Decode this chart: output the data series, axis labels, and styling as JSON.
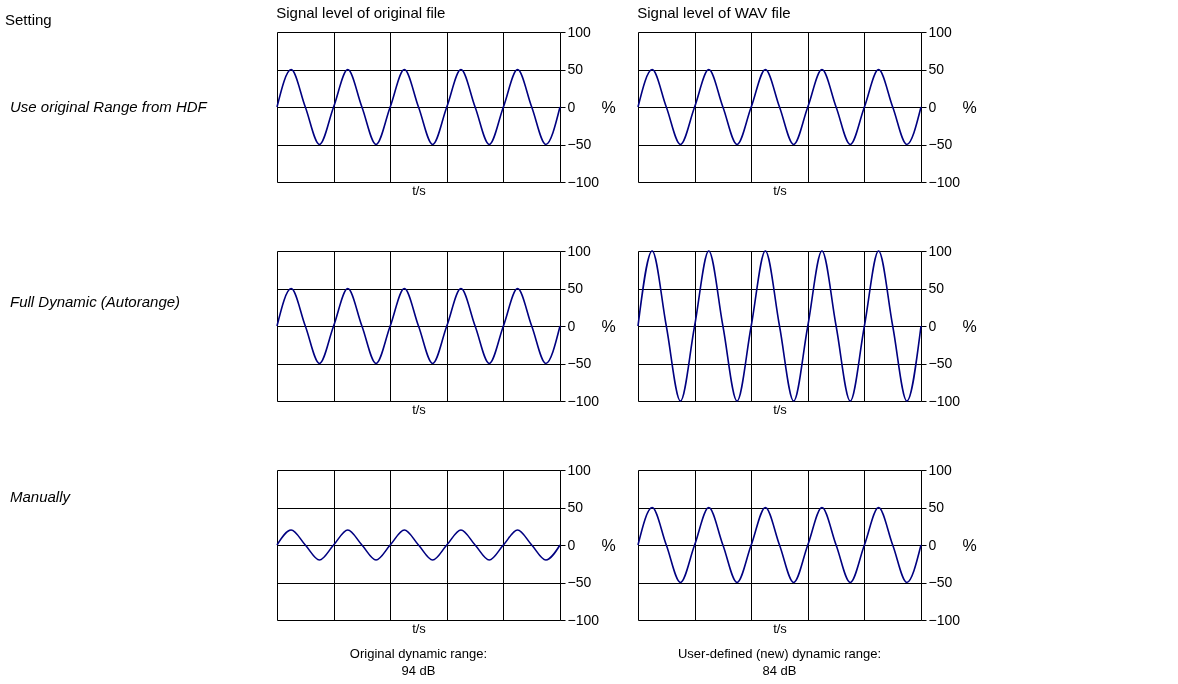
{
  "chart_data": [
    {
      "type": "other",
      "title": "Setting",
      "annotations": [
        "Use original Range from HDF",
        "Full Dynamic (Autorange)",
        "Manually"
      ]
    },
    {
      "type": "line",
      "title": "Signal level of original file",
      "xlabel": "t/s",
      "ylabel": "%",
      "categories": [
        null,
        null,
        null,
        null,
        null,
        null,
        null,
        null,
        null,
        null,
        null,
        null,
        null,
        null,
        null,
        null,
        null,
        null,
        null,
        null,
        null
      ],
      "series": [
        {
          "color": "#000080",
          "values": [
            0,
            50,
            0,
            -50,
            0,
            50,
            0,
            -50,
            0,
            50,
            0,
            -50,
            0,
            50,
            0,
            -50,
            0,
            50,
            0,
            -50,
            0
          ]
        }
      ],
      "ylim": [
        -100,
        100
      ],
      "yticks": [
        -100,
        -50,
        0,
        50,
        100
      ],
      "grid": true
    },
    {
      "type": "line",
      "title": "Signal level of WAV file",
      "xlabel": "t/s",
      "ylabel": "%",
      "categories": [
        null,
        null,
        null,
        null,
        null,
        null,
        null,
        null,
        null,
        null,
        null,
        null,
        null,
        null,
        null,
        null,
        null,
        null,
        null,
        null,
        null
      ],
      "series": [
        {
          "color": "#000080",
          "values": [
            0,
            50,
            0,
            -50,
            0,
            50,
            0,
            -50,
            0,
            50,
            0,
            -50,
            0,
            50,
            0,
            -50,
            0,
            50,
            0,
            -50,
            0
          ]
        }
      ],
      "ylim": [
        -100,
        100
      ],
      "yticks": [
        -100,
        -50,
        0,
        50,
        100
      ],
      "grid": true
    },
    {
      "type": "line",
      "xlabel": "t/s",
      "ylabel": "%",
      "categories": [
        null,
        null,
        null,
        null,
        null,
        null,
        null,
        null,
        null,
        null,
        null,
        null,
        null,
        null,
        null,
        null,
        null,
        null,
        null,
        null,
        null
      ],
      "series": [
        {
          "color": "#000080",
          "values": [
            0,
            50,
            0,
            -50,
            0,
            50,
            0,
            -50,
            0,
            50,
            0,
            -50,
            0,
            50,
            0,
            -50,
            0,
            50,
            0,
            -50,
            0
          ]
        }
      ],
      "ylim": [
        -100,
        100
      ],
      "yticks": [
        -100,
        -50,
        0,
        50,
        100
      ],
      "grid": true
    },
    {
      "type": "line",
      "xlabel": "t/s",
      "ylabel": "%",
      "categories": [
        null,
        null,
        null,
        null,
        null,
        null,
        null,
        null,
        null,
        null,
        null,
        null,
        null,
        null,
        null,
        null,
        null,
        null,
        null,
        null,
        null
      ],
      "series": [
        {
          "color": "#000080",
          "values": [
            0,
            100,
            0,
            -100,
            0,
            100,
            0,
            -100,
            0,
            100,
            0,
            -100,
            0,
            100,
            0,
            -100,
            0,
            100,
            0,
            -100,
            0
          ]
        }
      ],
      "ylim": [
        -100,
        100
      ],
      "yticks": [
        -100,
        -50,
        0,
        50,
        100
      ],
      "grid": true
    },
    {
      "type": "line",
      "xlabel": "t/s",
      "ylabel": "%",
      "categories": [
        null,
        null,
        null,
        null,
        null,
        null,
        null,
        null,
        null,
        null,
        null,
        null,
        null,
        null,
        null,
        null,
        null,
        null,
        null,
        null,
        null
      ],
      "series": [
        {
          "color": "#000080",
          "values": [
            0,
            20,
            0,
            -20,
            0,
            20,
            0,
            -20,
            0,
            20,
            0,
            -20,
            0,
            20,
            0,
            -20,
            0,
            20,
            0,
            -20,
            0
          ]
        }
      ],
      "ylim": [
        -100,
        100
      ],
      "yticks": [
        -100,
        -50,
        0,
        50,
        100
      ],
      "grid": true,
      "annotations": [
        "Original dynamic range:",
        "94 dB"
      ]
    },
    {
      "type": "line",
      "xlabel": "t/s",
      "ylabel": "%",
      "categories": [
        null,
        null,
        null,
        null,
        null,
        null,
        null,
        null,
        null,
        null,
        null,
        null,
        null,
        null,
        null,
        null,
        null,
        null,
        null,
        null,
        null
      ],
      "series": [
        {
          "color": "#000080",
          "values": [
            0,
            50,
            0,
            -50,
            0,
            50,
            0,
            -50,
            0,
            50,
            0,
            -50,
            0,
            50,
            0,
            -50,
            0,
            50,
            0,
            -50,
            0
          ]
        }
      ],
      "ylim": [
        -100,
        100
      ],
      "yticks": [
        -100,
        -50,
        0,
        50,
        100
      ],
      "grid": true,
      "annotations": [
        "User-defined (new) dynamic range:",
        "84 dB"
      ]
    }
  ]
}
